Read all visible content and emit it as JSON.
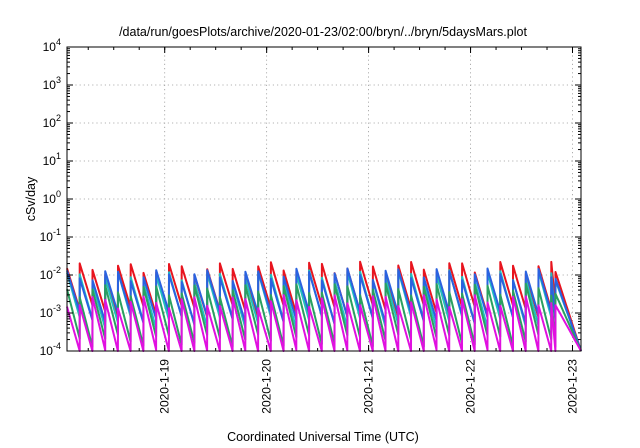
{
  "chart_data": {
    "type": "line",
    "title": "/data/run/goesPlots/archive/2020-01-23/02:00/bryn/../bryn/5daysMars.plot",
    "xlabel": "Coordinated Universal Time (UTC)",
    "ylabel": "cSv/day",
    "y_scale": "log",
    "ylim": [
      0.0001,
      10000
    ],
    "xlim": [
      "2020-01-18 01:00",
      "2020-01-23 02:00"
    ],
    "x_ticks": [
      "2020-1-19",
      "2020-1-20",
      "2020-1-21",
      "2020-1-22",
      "2020-1-23"
    ],
    "y_ticks": [
      {
        "base": "10",
        "exp": "-4"
      },
      {
        "base": "10",
        "exp": "-3"
      },
      {
        "base": "10",
        "exp": "-2"
      },
      {
        "base": "10",
        "exp": "-1"
      },
      {
        "base": "10",
        "exp": "0"
      },
      {
        "base": "10",
        "exp": "1"
      },
      {
        "base": "10",
        "exp": "2"
      },
      {
        "base": "10",
        "exp": "3"
      },
      {
        "base": "10",
        "exp": "4"
      }
    ],
    "grid": true,
    "legend": "none",
    "series": [
      {
        "color": "#e8141e",
        "peak": 0.015,
        "trough": 0.0012,
        "end_value": 0.0001
      },
      {
        "color": "#1fbfbf",
        "peak": 0.009,
        "trough": 0.0006,
        "end_value": 0.0001
      },
      {
        "color": "#2a62e0",
        "peak": 0.01,
        "trough": 0.0008,
        "end_value": 0.0001
      },
      {
        "color": "#2aa060",
        "peak": 0.004,
        "trough": 0.0002,
        "end_value": 0.0001
      },
      {
        "color": "#e010e0",
        "peak": 0.002,
        "trough": 8e-05,
        "end_value": 0.0001
      }
    ]
  }
}
